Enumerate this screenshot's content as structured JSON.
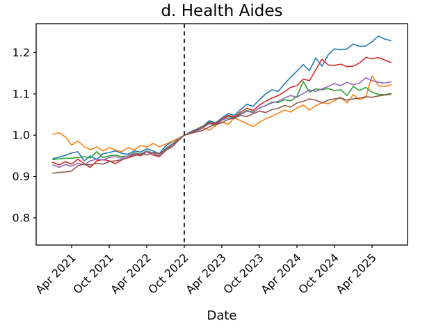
{
  "figure": {
    "background": "#ffffff"
  },
  "chart_data": {
    "type": "line",
    "title": "d. Health Aides",
    "xlabel": "Date",
    "ylabel": "",
    "ylim": [
      0.734,
      1.27
    ],
    "grid": false,
    "legend": "none",
    "x_frequency": "monthly",
    "x": [
      "2021-01",
      "2021-02",
      "2021-03",
      "2021-04",
      "2021-05",
      "2021-06",
      "2021-07",
      "2021-08",
      "2021-09",
      "2021-10",
      "2021-11",
      "2021-12",
      "2022-01",
      "2022-02",
      "2022-03",
      "2022-04",
      "2022-05",
      "2022-06",
      "2022-07",
      "2022-08",
      "2022-09",
      "2022-10",
      "2022-11",
      "2022-12",
      "2023-01",
      "2023-02",
      "2023-03",
      "2023-04",
      "2023-05",
      "2023-06",
      "2023-07",
      "2023-08",
      "2023-09",
      "2023-10",
      "2023-11",
      "2023-12",
      "2024-01",
      "2024-02",
      "2024-03",
      "2024-04",
      "2024-05",
      "2024-06",
      "2024-07",
      "2024-08",
      "2024-09",
      "2024-10",
      "2024-11",
      "2024-12",
      "2025-01",
      "2025-02",
      "2025-03",
      "2025-04",
      "2025-05",
      "2025-06",
      "2025-07"
    ],
    "x_ticks": [
      {
        "pos": "2021-04",
        "label": "Apr 2021"
      },
      {
        "pos": "2021-10",
        "label": "Oct 2021"
      },
      {
        "pos": "2022-04",
        "label": "Apr 2022"
      },
      {
        "pos": "2022-10",
        "label": "Oct 2022"
      },
      {
        "pos": "2023-04",
        "label": "Apr 2023"
      },
      {
        "pos": "2023-10",
        "label": "Oct 2023"
      },
      {
        "pos": "2024-04",
        "label": "Apr 2024"
      },
      {
        "pos": "2024-10",
        "label": "Oct 2024"
      },
      {
        "pos": "2025-04",
        "label": "Apr 2025"
      }
    ],
    "y_ticks": [
      {
        "value": 0.8,
        "label": "0.8"
      },
      {
        "value": 0.9,
        "label": "0.9"
      },
      {
        "value": 1.0,
        "label": "1.0"
      },
      {
        "value": 1.1,
        "label": "1.1"
      },
      {
        "value": 1.2,
        "label": "1.2"
      }
    ],
    "vline": {
      "x": "2022-10",
      "style": "dashed",
      "color": "#000000"
    },
    "series": [
      {
        "name": "series_blue",
        "color": "#1f77b4",
        "values": [
          0.943,
          0.947,
          0.951,
          0.957,
          0.96,
          0.938,
          0.95,
          0.941,
          0.955,
          0.958,
          0.962,
          0.956,
          0.954,
          0.962,
          0.959,
          0.967,
          0.962,
          0.955,
          0.974,
          0.984,
          0.992,
          1.0,
          1.008,
          1.015,
          1.022,
          1.035,
          1.03,
          1.042,
          1.052,
          1.048,
          1.062,
          1.075,
          1.07,
          1.086,
          1.1,
          1.11,
          1.106,
          1.124,
          1.14,
          1.155,
          1.171,
          1.156,
          1.187,
          1.167,
          1.195,
          1.209,
          1.207,
          1.209,
          1.221,
          1.215,
          1.216,
          1.226,
          1.24,
          1.233,
          1.229
        ]
      },
      {
        "name": "series_orange",
        "color": "#ff7f0e",
        "values": [
          1.002,
          1.006,
          0.996,
          0.976,
          0.986,
          0.972,
          0.965,
          0.972,
          0.962,
          0.97,
          0.964,
          0.96,
          0.97,
          0.964,
          0.975,
          0.971,
          0.98,
          0.972,
          0.978,
          0.985,
          0.992,
          1.0,
          1.005,
          1.011,
          1.018,
          1.012,
          1.023,
          1.032,
          1.026,
          1.042,
          1.035,
          1.028,
          1.021,
          1.031,
          1.04,
          1.046,
          1.053,
          1.061,
          1.056,
          1.066,
          1.073,
          1.061,
          1.071,
          1.079,
          1.076,
          1.084,
          1.092,
          1.078,
          1.098,
          1.086,
          1.092,
          1.144,
          1.12,
          1.118,
          1.122
        ]
      },
      {
        "name": "series_green",
        "color": "#2ca02c",
        "values": [
          0.941,
          0.943,
          0.944,
          0.944,
          0.946,
          0.948,
          0.945,
          0.96,
          0.946,
          0.95,
          0.952,
          0.948,
          0.95,
          0.958,
          0.954,
          0.962,
          0.957,
          0.951,
          0.968,
          0.978,
          0.99,
          1.0,
          1.006,
          1.014,
          1.022,
          1.032,
          1.028,
          1.038,
          1.046,
          1.042,
          1.052,
          1.06,
          1.056,
          1.066,
          1.072,
          1.08,
          1.079,
          1.086,
          1.083,
          1.094,
          1.13,
          1.104,
          1.112,
          1.11,
          1.113,
          1.108,
          1.11,
          1.096,
          1.118,
          1.108,
          1.116,
          1.104,
          1.099,
          1.098,
          1.101
        ]
      },
      {
        "name": "series_red",
        "color": "#d62728",
        "values": [
          0.934,
          0.928,
          0.936,
          0.93,
          0.942,
          0.931,
          0.922,
          0.938,
          0.941,
          0.938,
          0.931,
          0.94,
          0.946,
          0.954,
          0.95,
          0.96,
          0.952,
          0.948,
          0.962,
          0.975,
          0.988,
          1.0,
          1.006,
          1.012,
          1.02,
          1.03,
          1.027,
          1.038,
          1.048,
          1.044,
          1.056,
          1.065,
          1.06,
          1.073,
          1.082,
          1.09,
          1.096,
          1.105,
          1.116,
          1.12,
          1.136,
          1.132,
          1.158,
          1.184,
          1.17,
          1.169,
          1.172,
          1.166,
          1.167,
          1.175,
          1.188,
          1.185,
          1.188,
          1.182,
          1.176
        ]
      },
      {
        "name": "series_purple",
        "color": "#9467bd",
        "values": [
          0.928,
          0.922,
          0.929,
          0.925,
          0.932,
          0.928,
          0.938,
          0.942,
          0.94,
          0.946,
          0.948,
          0.944,
          0.95,
          0.956,
          0.952,
          0.961,
          0.956,
          0.95,
          0.966,
          0.976,
          0.988,
          1.0,
          1.005,
          1.01,
          1.018,
          1.028,
          1.024,
          1.036,
          1.042,
          1.04,
          1.05,
          1.058,
          1.055,
          1.066,
          1.072,
          1.078,
          1.082,
          1.09,
          1.096,
          1.092,
          1.101,
          1.11,
          1.106,
          1.112,
          1.118,
          1.125,
          1.12,
          1.128,
          1.122,
          1.126,
          1.139,
          1.132,
          1.128,
          1.126,
          1.129
        ]
      },
      {
        "name": "series_brown",
        "color": "#8c564b",
        "values": [
          0.908,
          0.91,
          0.911,
          0.913,
          0.926,
          0.93,
          0.928,
          0.932,
          0.93,
          0.936,
          0.938,
          0.941,
          0.945,
          0.95,
          0.955,
          0.952,
          0.958,
          0.956,
          0.963,
          0.971,
          0.986,
          1.0,
          1.004,
          1.008,
          1.012,
          1.02,
          1.026,
          1.03,
          1.038,
          1.042,
          1.048,
          1.045,
          1.052,
          1.058,
          1.055,
          1.062,
          1.065,
          1.072,
          1.068,
          1.078,
          1.082,
          1.088,
          1.085,
          1.078,
          1.085,
          1.088,
          1.09,
          1.085,
          1.088,
          1.09,
          1.093,
          1.092,
          1.095,
          1.097,
          1.099
        ]
      }
    ]
  }
}
